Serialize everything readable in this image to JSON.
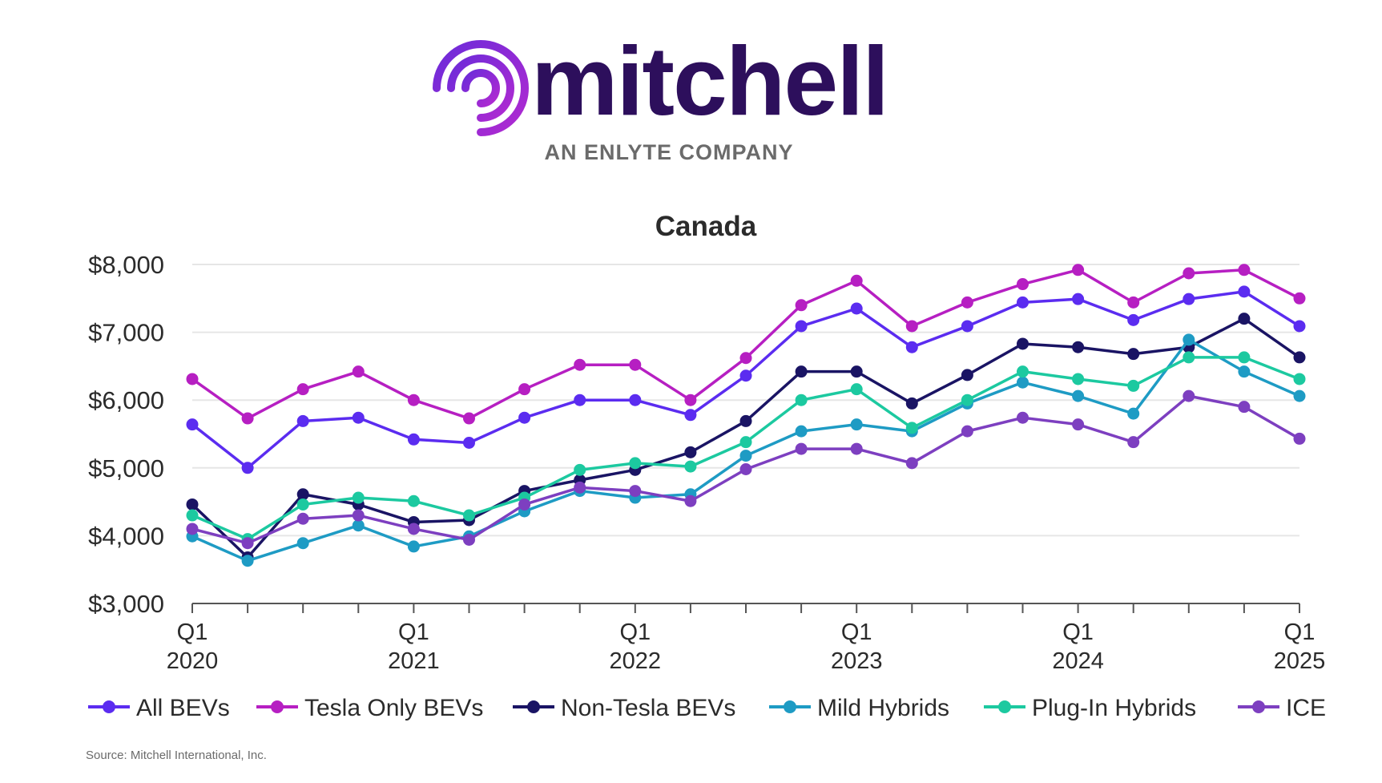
{
  "brand": {
    "name": "mitchell",
    "tagline": "AN ENLYTE COMPANY"
  },
  "colors": {
    "brand_purple": "#2d0f5c",
    "logo_gradient_start": "#6c2bd9",
    "logo_gradient_end": "#b12ad1",
    "tagline_gray": "#6b6b6b",
    "grid": "#e6e6e6"
  },
  "source": "Source: Mitchell International, Inc.",
  "chart_data": {
    "type": "line",
    "title": "Canada",
    "xlabel": "",
    "ylabel": "",
    "ylim": [
      3000,
      8000
    ],
    "yticks": [
      3000,
      4000,
      5000,
      6000,
      7000,
      8000
    ],
    "ytick_labels": [
      "$3,000",
      "$4,000",
      "$5,000",
      "$6,000",
      "$7,000",
      "$8,000"
    ],
    "grid": "horizontal",
    "legend_position": "bottom",
    "x": [
      "Q1 2020",
      "Q2 2020",
      "Q3 2020",
      "Q4 2020",
      "Q1 2021",
      "Q2 2021",
      "Q3 2021",
      "Q4 2021",
      "Q1 2022",
      "Q2 2022",
      "Q3 2022",
      "Q4 2022",
      "Q1 2023",
      "Q2 2023",
      "Q3 2023",
      "Q4 2023",
      "Q1 2024",
      "Q2 2024",
      "Q3 2024",
      "Q4 2024",
      "Q1 2025"
    ],
    "xtick_labels": [
      {
        "index": 0,
        "line1": "Q1",
        "line2": "2020"
      },
      {
        "index": 4,
        "line1": "Q1",
        "line2": "2021"
      },
      {
        "index": 8,
        "line1": "Q1",
        "line2": "2022"
      },
      {
        "index": 12,
        "line1": "Q1",
        "line2": "2023"
      },
      {
        "index": 16,
        "line1": "Q1",
        "line2": "2024"
      },
      {
        "index": 20,
        "line1": "Q1",
        "line2": "2025"
      }
    ],
    "series": [
      {
        "name": "All BEVs",
        "color": "#5b2cf0",
        "values": [
          5640,
          5000,
          5690,
          5740,
          5420,
          5370,
          5740,
          6000,
          6000,
          5780,
          6360,
          7090,
          7350,
          6780,
          7090,
          7440,
          7490,
          7180,
          7490,
          7600,
          7090
        ]
      },
      {
        "name": "Tesla Only BEVs",
        "color": "#b61fc2",
        "values": [
          6310,
          5730,
          6160,
          6420,
          6000,
          5730,
          6160,
          6520,
          6520,
          6000,
          6620,
          7400,
          7760,
          7090,
          7440,
          7710,
          7920,
          7440,
          7870,
          7920,
          7500
        ]
      },
      {
        "name": "Non-Tesla BEVs",
        "color": "#1a1464",
        "values": [
          4460,
          3680,
          4610,
          4460,
          4200,
          4230,
          4660,
          4820,
          4970,
          5230,
          5690,
          6420,
          6420,
          5950,
          6370,
          6830,
          6780,
          6680,
          6780,
          7200,
          6630
        ]
      },
      {
        "name": "Mild Hybrids",
        "color": "#1e9bc4",
        "values": [
          3990,
          3630,
          3890,
          4150,
          3840,
          3990,
          4360,
          4660,
          4560,
          4610,
          5180,
          5540,
          5640,
          5540,
          5950,
          6260,
          6060,
          5800,
          6890,
          6420,
          6060
        ]
      },
      {
        "name": "Plug-In Hybrids",
        "color": "#1cc9a0",
        "values": [
          4300,
          3950,
          4460,
          4560,
          4510,
          4300,
          4560,
          4970,
          5070,
          5020,
          5380,
          6000,
          6160,
          5590,
          6000,
          6420,
          6310,
          6210,
          6630,
          6630,
          6310
        ]
      },
      {
        "name": "ICE",
        "color": "#7d3fc0",
        "values": [
          4100,
          3890,
          4250,
          4300,
          4100,
          3940,
          4460,
          4710,
          4660,
          4510,
          4980,
          5280,
          5280,
          5070,
          5540,
          5740,
          5640,
          5380,
          6060,
          5900,
          5430
        ]
      }
    ]
  }
}
